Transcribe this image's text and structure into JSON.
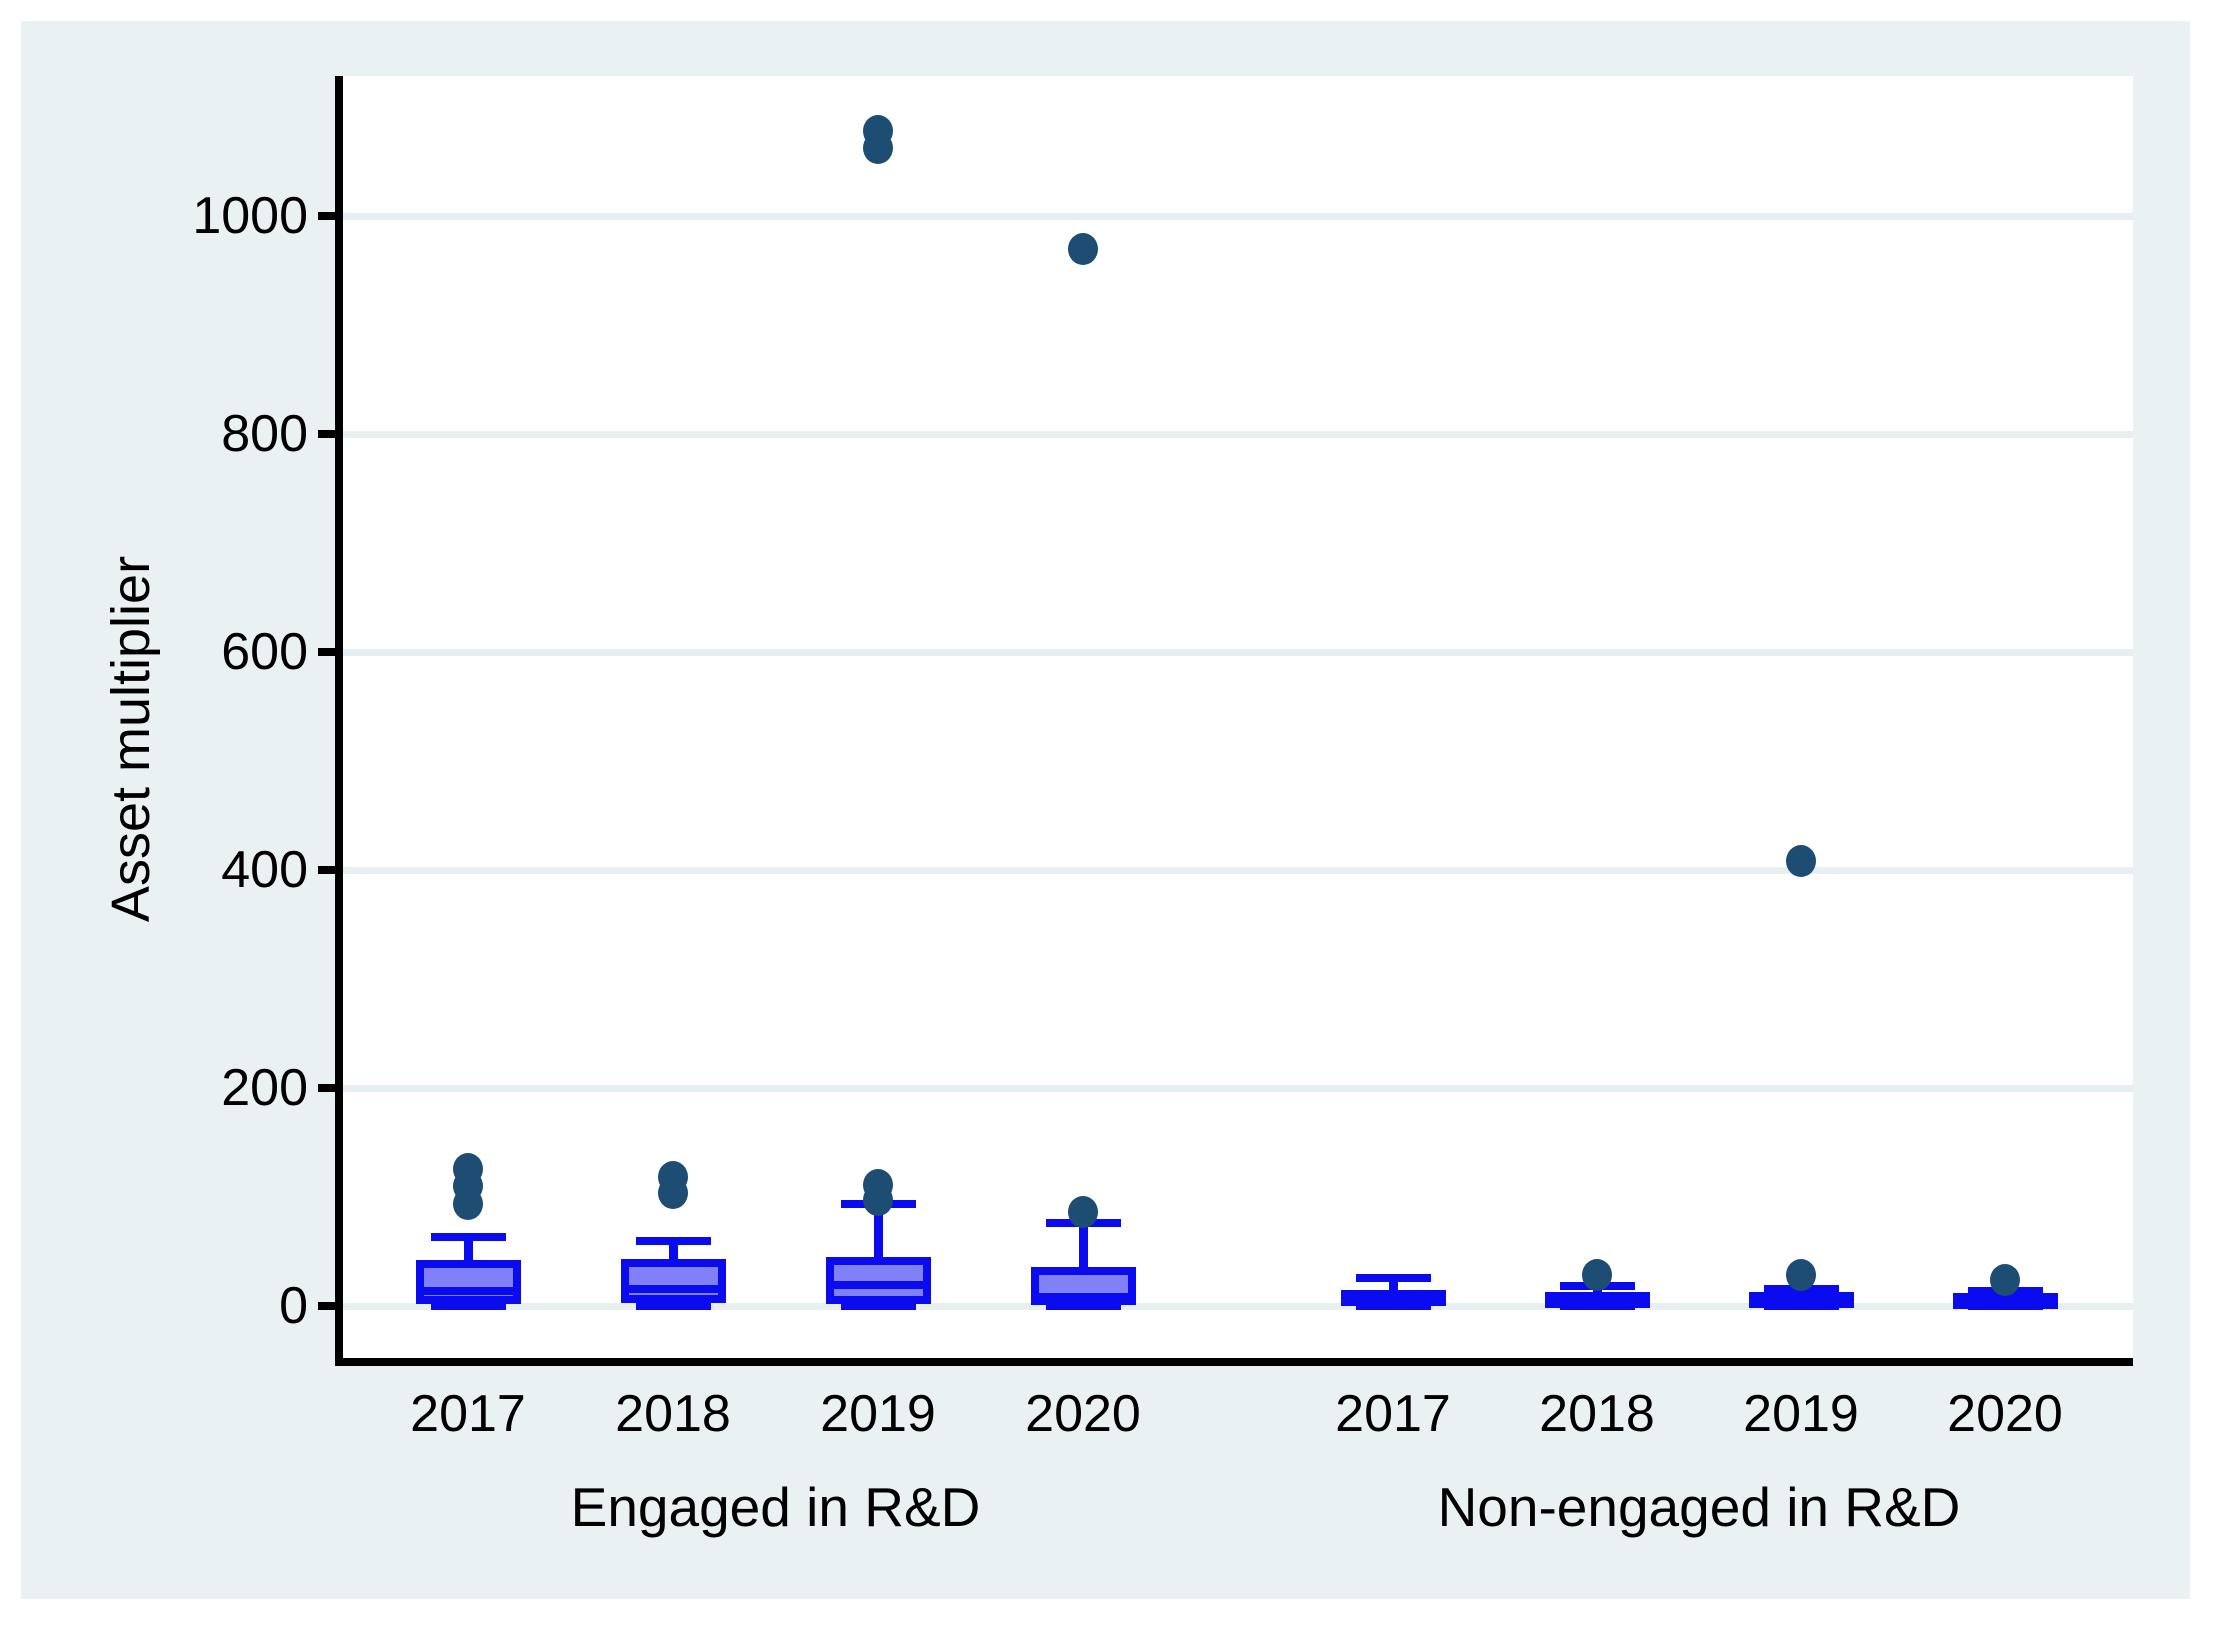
{
  "chart_data": {
    "type": "box",
    "title": "",
    "xlabel": "",
    "ylabel": "Asset multiplier",
    "y_ticks": [
      0,
      200,
      400,
      600,
      800,
      1000
    ],
    "ylim": [
      -48,
      1128
    ],
    "grid": true,
    "legend": "none",
    "groups": [
      {
        "label": "Engaged in R&D",
        "boxes": [
          {
            "category": "2017",
            "whisker_low": 0,
            "q1": 2,
            "median": 14,
            "q3": 42,
            "whisker_high": 63,
            "outliers": [
              94,
              110,
              126
            ]
          },
          {
            "category": "2018",
            "whisker_low": 0,
            "q1": 3,
            "median": 16,
            "q3": 43,
            "whisker_high": 60,
            "outliers": [
              104,
              118
            ]
          },
          {
            "category": "2019",
            "whisker_low": 0,
            "q1": 2,
            "median": 19,
            "q3": 45,
            "whisker_high": 94,
            "outliers": [
              97,
              111,
              1062,
              1078
            ]
          },
          {
            "category": "2020",
            "whisker_low": 0,
            "q1": 1,
            "median": 8,
            "q3": 36,
            "whisker_high": 76,
            "outliers": [
              86,
              970
            ]
          }
        ]
      },
      {
        "label": "Non-engaged in R&D",
        "boxes": [
          {
            "category": "2017",
            "whisker_low": 0,
            "q1": 1,
            "median": 8,
            "q3": 15,
            "whisker_high": 26,
            "outliers": []
          },
          {
            "category": "2018",
            "whisker_low": 0,
            "q1": 1,
            "median": 8,
            "q3": 13,
            "whisker_high": 18,
            "outliers": [
              28
            ]
          },
          {
            "category": "2019",
            "whisker_low": 0,
            "q1": 1,
            "median": 4,
            "q3": 13,
            "whisker_high": 16,
            "outliers": [
              28,
              408
            ]
          },
          {
            "category": "2020",
            "whisker_low": 0,
            "q1": 1,
            "median": 5,
            "q3": 12,
            "whisker_high": 14,
            "outliers": [
              24
            ]
          }
        ]
      }
    ],
    "colors": {
      "graph_background": "#eaf1f3",
      "plot_background": "#ffffff",
      "gridline": "#e7eff2",
      "box_border": "#0b0bf0",
      "box_fill": "#8080f8",
      "outlier_dot": "#1e4d73",
      "axis": "#000000",
      "text": "#000000"
    }
  }
}
